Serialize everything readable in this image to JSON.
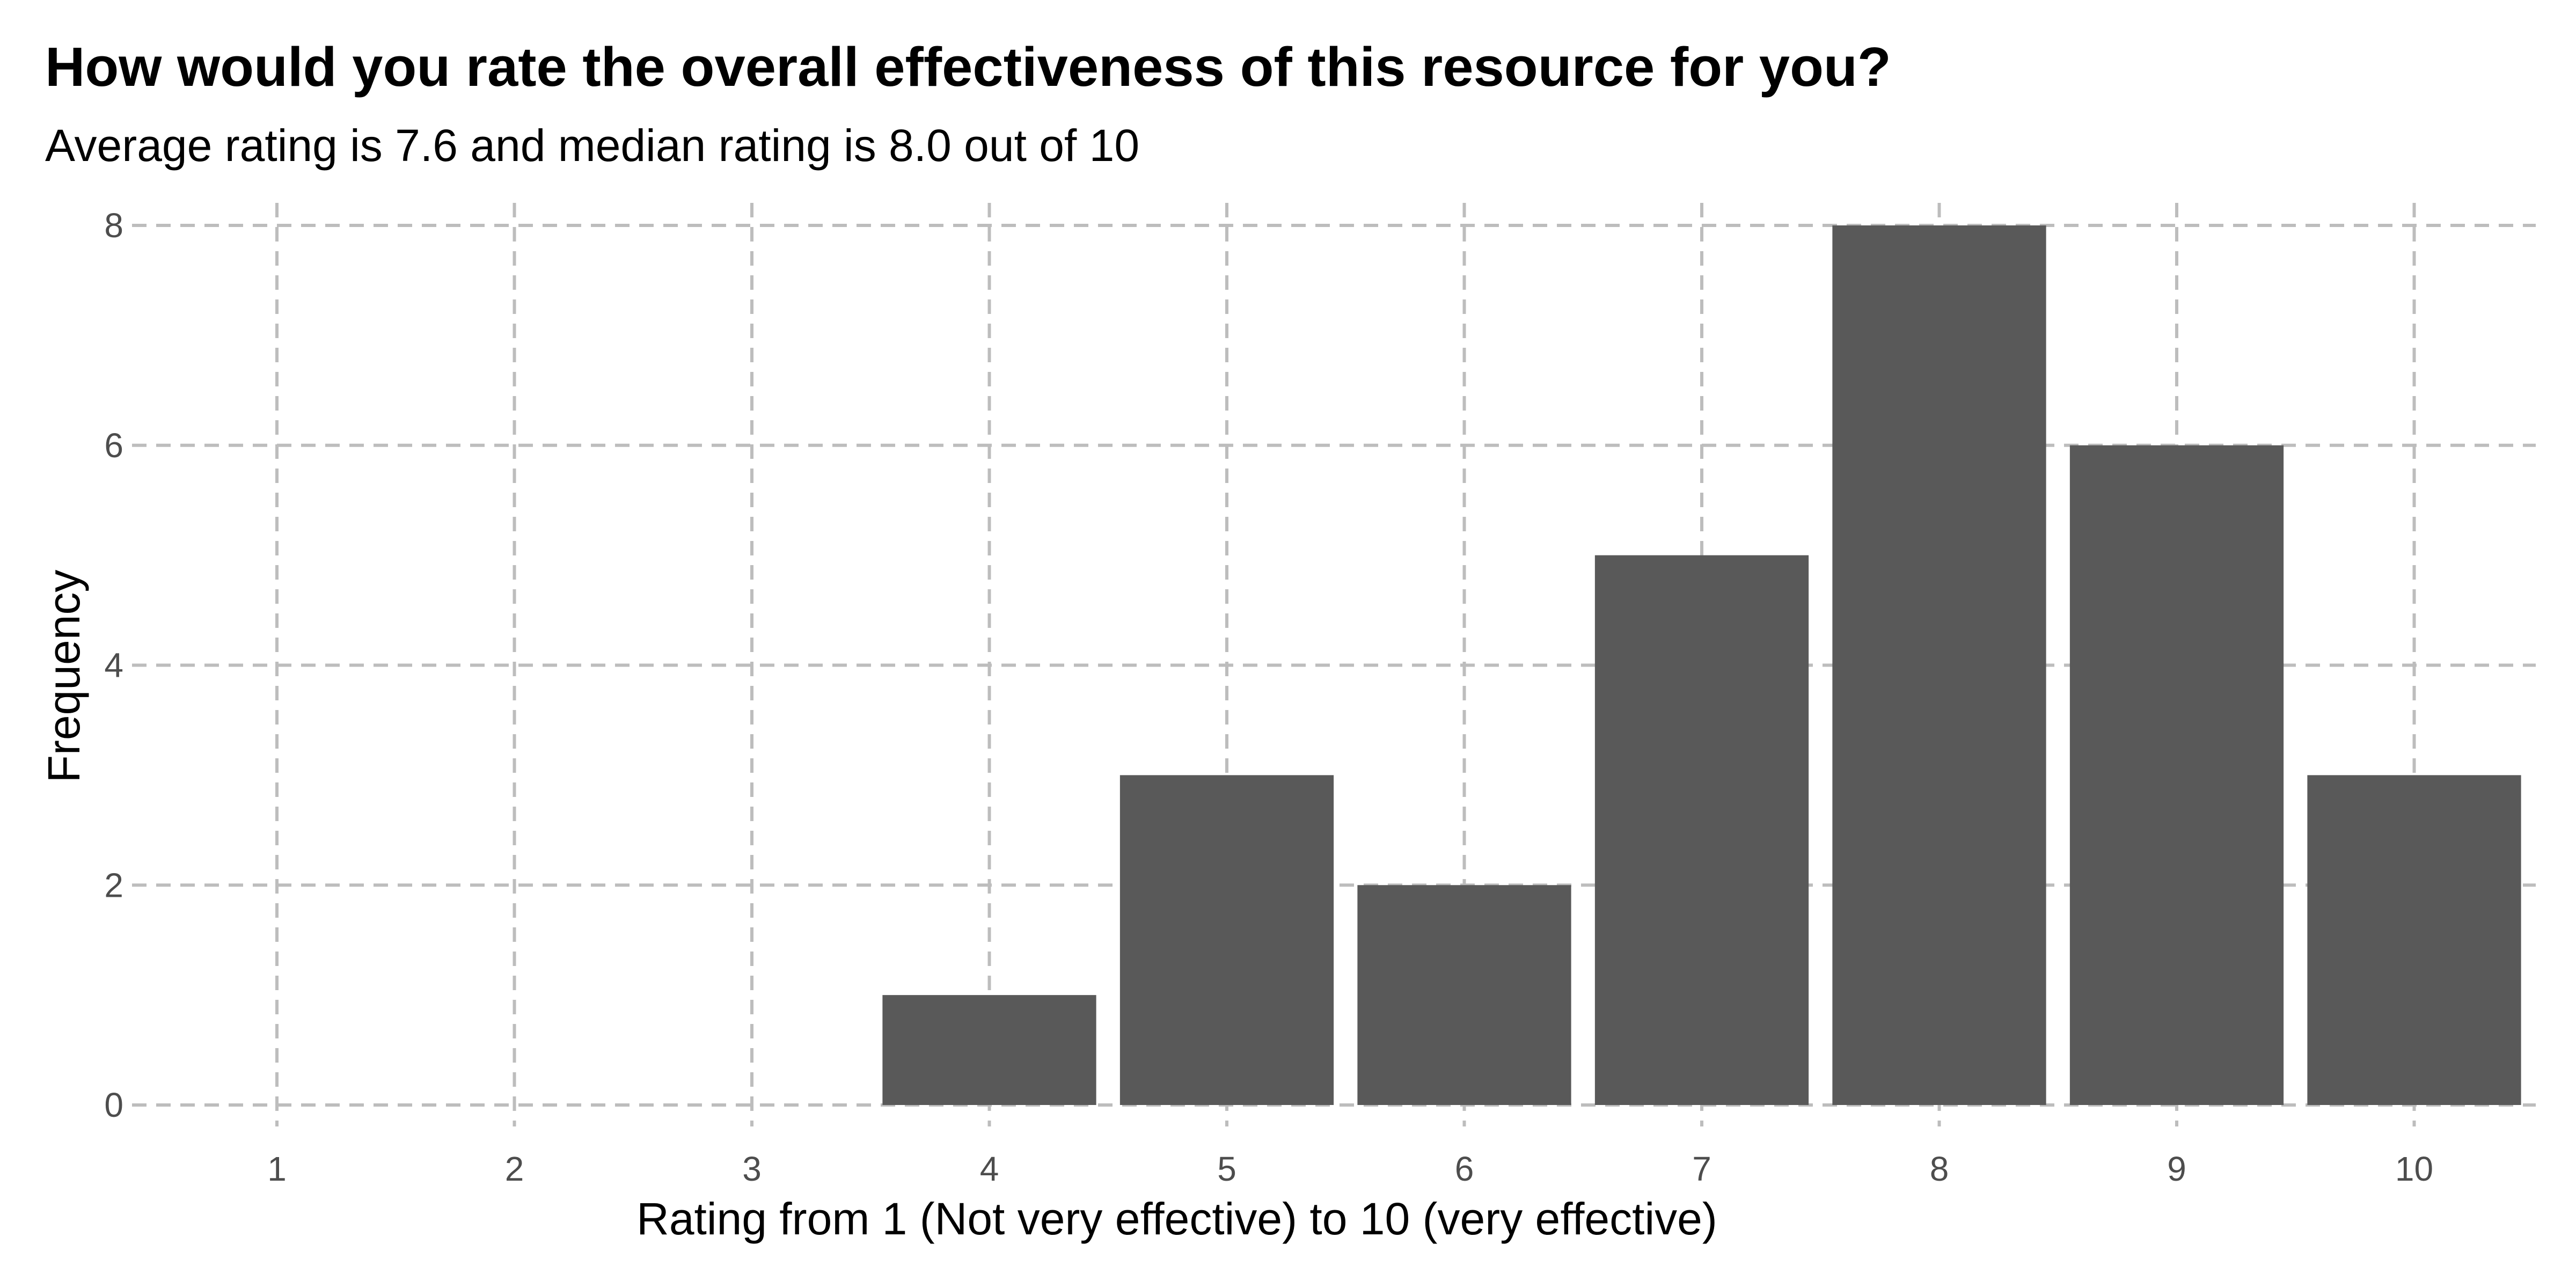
{
  "chart_data": {
    "type": "bar",
    "title": "How would you rate the overall effectiveness of this resource for you?",
    "subtitle": "Average rating is 7.6 and median rating is 8.0 out of 10",
    "xlabel": "Rating from 1 (Not very effective) to 10 (very effective)",
    "ylabel": "Frequency",
    "categories": [
      "1",
      "2",
      "3",
      "4",
      "5",
      "6",
      "7",
      "8",
      "9",
      "10"
    ],
    "values": [
      0,
      0,
      0,
      1,
      3,
      2,
      5,
      8,
      6,
      3
    ],
    "yticks": [
      "0",
      "2",
      "4",
      "6",
      "8"
    ],
    "ylim": [
      0,
      8
    ],
    "bar_color": "#595959",
    "grid": true,
    "grid_style": "dashed",
    "grid_color": "#bdbdbd",
    "legend": "none"
  }
}
